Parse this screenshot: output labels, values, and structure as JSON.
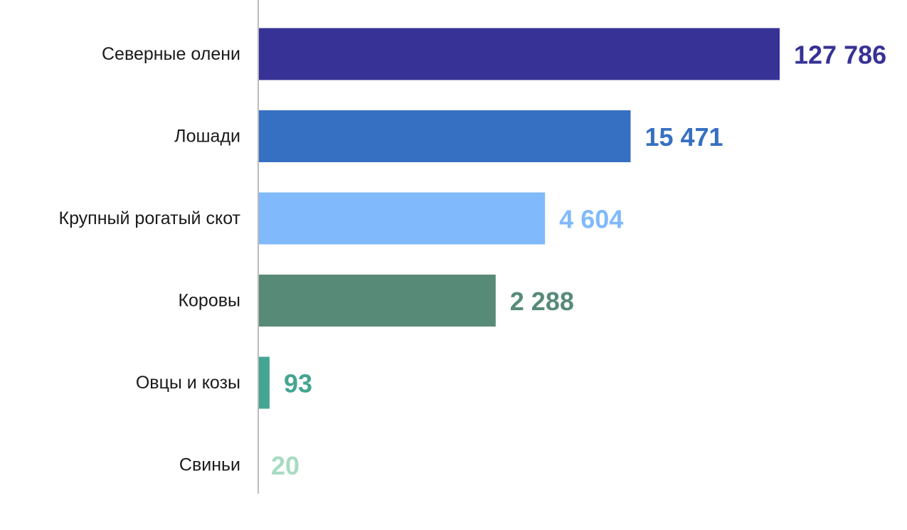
{
  "chart_data": {
    "type": "bar",
    "orientation": "horizontal",
    "categories": [
      "Северные олени",
      "Лошади",
      "Крупный рогатый скот",
      "Коровы",
      "Овцы и козы",
      "Свиньи"
    ],
    "values": [
      127786,
      15471,
      4604,
      2288,
      93,
      20
    ],
    "value_labels": [
      "127 786",
      "15 471",
      "4 604",
      "2 288",
      "93",
      "20"
    ],
    "colors": [
      "#373296",
      "#3670c2",
      "#80bafc",
      "#588a78",
      "#44a592",
      "#a8dbc2"
    ],
    "axis_color": "#bbbbbb",
    "title": "",
    "xlabel": "",
    "ylabel": "",
    "grid": false,
    "legend": "none"
  }
}
